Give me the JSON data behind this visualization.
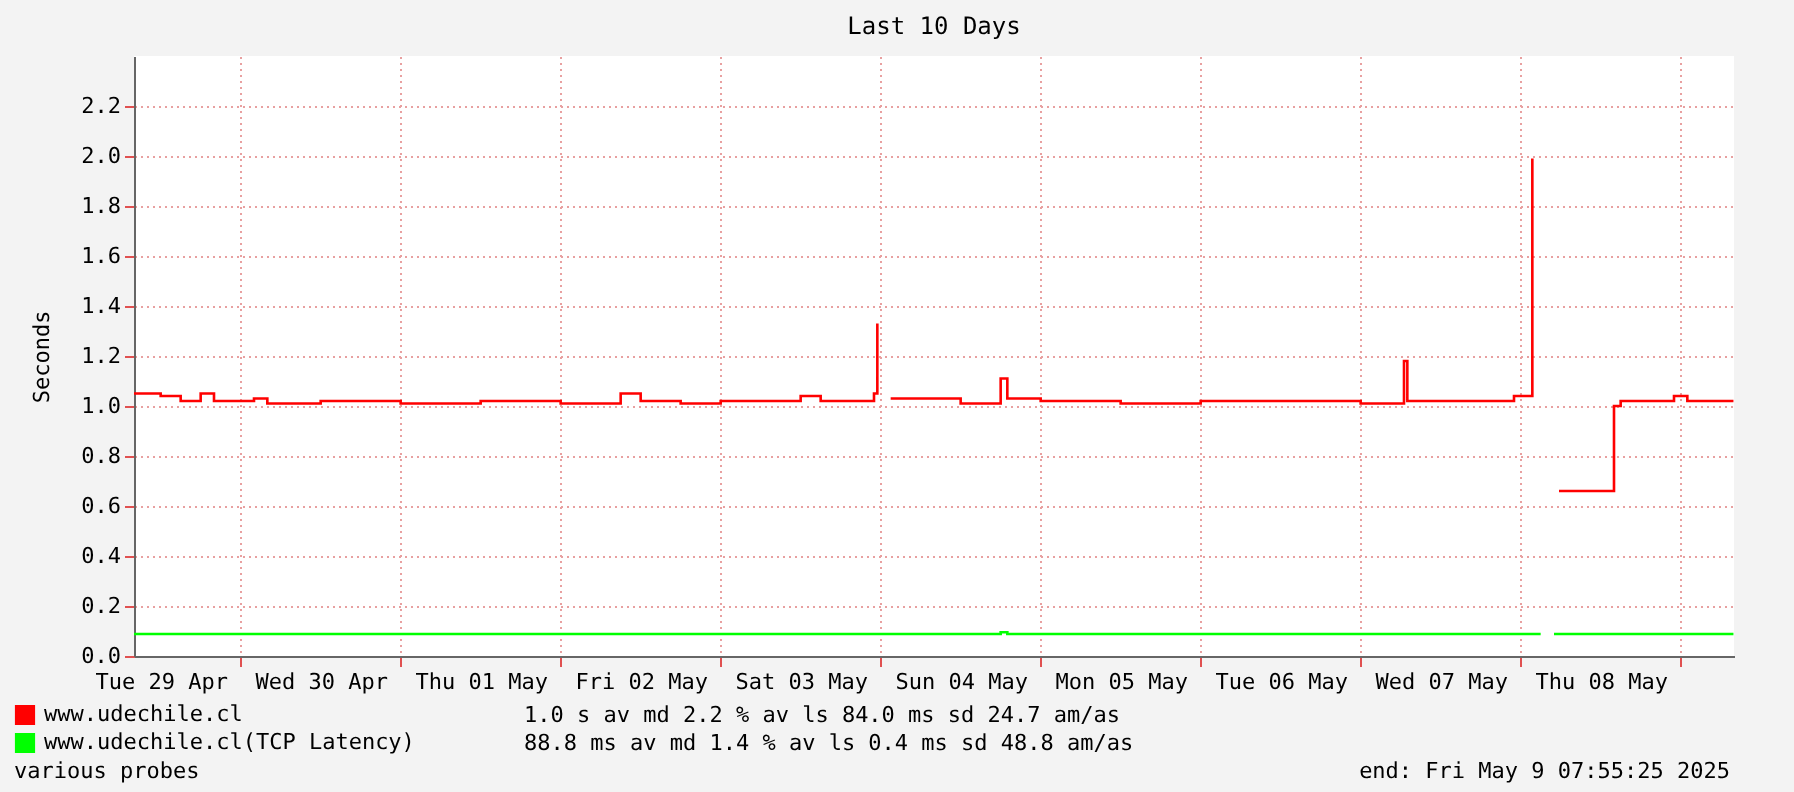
{
  "chart_data": {
    "type": "step",
    "title": "Last 10 Days",
    "ylabel": "Seconds",
    "xlim": [
      "2025-04-29T08:00",
      "2025-05-09T08:00"
    ],
    "xticks": [
      {
        "value": "2025-04-29T12:00",
        "label": "Tue 29 Apr"
      },
      {
        "value": "2025-04-30T00:00",
        "label": null
      },
      {
        "value": "2025-04-30T12:00",
        "label": "Wed 30 Apr"
      },
      {
        "value": "2025-05-01T00:00",
        "label": null
      },
      {
        "value": "2025-05-01T12:00",
        "label": "Thu 01 May"
      },
      {
        "value": "2025-05-02T00:00",
        "label": null
      },
      {
        "value": "2025-05-02T12:00",
        "label": "Fri 02 May"
      },
      {
        "value": "2025-05-03T00:00",
        "label": null
      },
      {
        "value": "2025-05-03T12:00",
        "label": "Sat 03 May"
      },
      {
        "value": "2025-05-04T00:00",
        "label": null
      },
      {
        "value": "2025-05-04T12:00",
        "label": "Sun 04 May"
      },
      {
        "value": "2025-05-05T00:00",
        "label": null
      },
      {
        "value": "2025-05-05T12:00",
        "label": "Mon 05 May"
      },
      {
        "value": "2025-05-06T00:00",
        "label": null
      },
      {
        "value": "2025-05-06T12:00",
        "label": "Tue 06 May"
      },
      {
        "value": "2025-05-07T00:00",
        "label": null
      },
      {
        "value": "2025-05-07T12:00",
        "label": "Wed 07 May"
      },
      {
        "value": "2025-05-08T00:00",
        "label": null
      },
      {
        "value": "2025-05-08T12:00",
        "label": "Thu 08 May"
      },
      {
        "value": "2025-05-09T00:00",
        "label": null
      }
    ],
    "ylim": [
      0,
      2.4
    ],
    "yticks": [
      {
        "value": 0,
        "label": "0.0"
      },
      {
        "value": 0.2,
        "label": "0.2"
      },
      {
        "value": 0.4,
        "label": "0.4"
      },
      {
        "value": 0.6,
        "label": "0.6"
      },
      {
        "value": 0.8,
        "label": "0.8"
      },
      {
        "value": 1,
        "label": "1.0"
      },
      {
        "value": 1.2,
        "label": "1.2"
      },
      {
        "value": 1.4,
        "label": "1.4"
      },
      {
        "value": 1.6,
        "label": "1.6"
      },
      {
        "value": 1.8,
        "label": "1.8"
      },
      {
        "value": 2,
        "label": "2.0"
      },
      {
        "value": 2.2,
        "label": "2.2"
      }
    ],
    "grid": true,
    "legend": "bottom",
    "annotations": [
      "1.0 s av md 2.2 % av ls 84.0 ms sd 24.7 am/as",
      "88.8 ms av md 1.4 % av ls 0.4 ms sd 48.8 am/as",
      "various probes",
      "end: Fri May 9 07:55:25 2025"
    ],
    "series": [
      {
        "name": "www.udechile.cl",
        "color": "#ff0000",
        "x": [
          "2025-04-29T08:00",
          "2025-04-29T12:00",
          "2025-04-29T15:00",
          "2025-04-29T18:00",
          "2025-04-29T20:00",
          "2025-04-30T02:00",
          "2025-04-30T04:00",
          "2025-04-30T12:00",
          "2025-05-01T00:00",
          "2025-05-01T12:00",
          "2025-05-02T00:00",
          "2025-05-02T09:00",
          "2025-05-02T12:00",
          "2025-05-02T18:00",
          "2025-05-03T00:00",
          "2025-05-03T12:00",
          "2025-05-03T15:00",
          "2025-05-03T23:00",
          "2025-05-03T23:30",
          "2025-05-03T23:50",
          "2025-05-04T01:30",
          "2025-05-04T12:00",
          "2025-05-04T18:00",
          "2025-05-04T19:00",
          "2025-05-05T00:00",
          "2025-05-05T12:00",
          "2025-05-06T00:00",
          "2025-05-06T12:00",
          "2025-05-07T00:00",
          "2025-05-07T06:30",
          "2025-05-07T07:00",
          "2025-05-07T12:00",
          "2025-05-07T23:00",
          "2025-05-08T01:45",
          "2025-05-08T02:30",
          "2025-05-08T05:45",
          "2025-05-08T12:00",
          "2025-05-08T14:00",
          "2025-05-08T15:00",
          "2025-05-08T23:00",
          "2025-05-09T01:00",
          "2025-05-09T07:55"
        ],
        "values": [
          1.05,
          1.04,
          1.02,
          1.05,
          1.02,
          1.03,
          1.01,
          1.02,
          1.01,
          1.02,
          1.01,
          1.05,
          1.02,
          1.01,
          1.02,
          1.04,
          1.02,
          1.05,
          1.33,
          null,
          1.03,
          1.01,
          1.11,
          1.03,
          1.02,
          1.01,
          1.02,
          1.02,
          1.01,
          1.18,
          1.02,
          1.02,
          1.04,
          1.99,
          null,
          0.66,
          0.66,
          1.0,
          1.02,
          1.04,
          1.02,
          1.02
        ]
      },
      {
        "name": "www.udechile.cl(TCP Latency)",
        "color": "#00ff00",
        "x": [
          "2025-04-29T08:00",
          "2025-05-02T00:00",
          "2025-05-04T17:00",
          "2025-05-04T18:00",
          "2025-05-04T19:00",
          "2025-05-08T03:00",
          "2025-05-08T04:00",
          "2025-05-08T05:00",
          "2025-05-09T07:55"
        ],
        "values": [
          0.088,
          0.088,
          0.088,
          0.095,
          0.088,
          0.088,
          null,
          0.088,
          0.088
        ]
      }
    ]
  }
}
